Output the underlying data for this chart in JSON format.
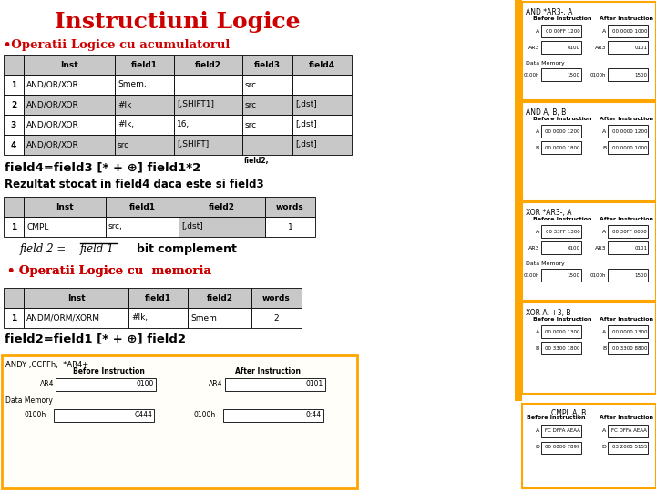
{
  "title": "Instructiuni Logice",
  "title_color": "#CC0000",
  "bg_color": "#FFFFFF",
  "subtitle1": "•Operatii Logice cu acumulatorul",
  "subtitle1_color": "#CC0000",
  "table1_headers": [
    "",
    "Inst",
    "field1",
    "field2",
    "field3",
    "field4"
  ],
  "table1_rows": [
    [
      "1",
      "AND/OR/XOR",
      "Smem,",
      "",
      "src",
      ""
    ],
    [
      "2",
      "AND/OR/XOR",
      "#lk",
      "[,SHIFT1]",
      "src",
      "[,dst]"
    ],
    [
      "3",
      "AND/OR/XOR",
      "#lk,",
      "16,",
      "src",
      "[,dst]"
    ],
    [
      "4",
      "AND/OR/XOR",
      "src",
      "[,SHIFT]",
      "",
      "[,dst]"
    ]
  ],
  "table2_headers": [
    "",
    "Inst",
    "field1",
    "field2",
    "words"
  ],
  "table2_rows": [
    [
      "1",
      "CMPL",
      "src,",
      "[,dst]",
      "1"
    ]
  ],
  "table3_headers": [
    "",
    "Inst",
    "field1",
    "field2",
    "words"
  ],
  "table3_rows": [
    [
      "1",
      "ANDM/ORM/XORM",
      "#lk,",
      "Smem",
      "2"
    ]
  ],
  "orange": "#FFA500",
  "gray_header": "#C8C8C8",
  "gray_row": "#C8C8C8",
  "white": "#FFFFFF",
  "light_gray_row": "#E8E8E8",
  "example1_title": "ANDY ,CCFFh,  *AR4+",
  "example1_ar4_before": "0100",
  "example1_ar4_after": "0101",
  "example1_dmem_addr": "0100h",
  "example1_dmem_before": "C444",
  "example1_dmem_after": "0:44",
  "right_sections": [
    {
      "label": "AND *AR3-, A",
      "has_dmem": true,
      "rows_before": [
        [
          "A",
          "00 00FF 1200"
        ],
        [
          "AR3",
          "0100"
        ]
      ],
      "dmem_before": [
        "0100h",
        "1500"
      ],
      "rows_after": [
        [
          "A",
          "00 0000 1000"
        ],
        [
          "AR3",
          "0101"
        ]
      ],
      "dmem_after": [
        "0100h",
        "1500"
      ]
    },
    {
      "label": "AND A, B, B",
      "has_dmem": false,
      "rows_before": [
        [
          "A",
          "00 0000 1200"
        ],
        [
          "B",
          "00 0000 1800"
        ]
      ],
      "rows_after": [
        [
          "A",
          "00 0000 1200"
        ],
        [
          "B",
          "00 0000 1000"
        ]
      ]
    },
    {
      "label": "XOR *AR3-, A",
      "has_dmem": true,
      "rows_before": [
        [
          "A",
          "00 33FF 1300"
        ],
        [
          "AR3",
          "0100"
        ]
      ],
      "dmem_before": [
        "0100h",
        "1500"
      ],
      "rows_after": [
        [
          "A",
          "00 30FF 0000"
        ],
        [
          "AR3",
          "0101"
        ]
      ],
      "dmem_after": [
        "0100h",
        "1500"
      ]
    },
    {
      "label": "XOR A, +3, B",
      "has_dmem": false,
      "rows_before": [
        [
          "A",
          "00 0000 1300"
        ],
        [
          "B",
          "00 3300 1800"
        ]
      ],
      "rows_after": [
        [
          "A",
          "00 0000 1300"
        ],
        [
          "B",
          "00 3300 8800"
        ]
      ]
    }
  ],
  "cmpl_title": "CMPL A, B",
  "cmpl_before": [
    [
      "A",
      "FC DFFA AEAA"
    ],
    [
      "D",
      "00 0000 7899"
    ]
  ],
  "cmpl_after": [
    [
      "A",
      "FC DFFA AEAA"
    ],
    [
      "D",
      "03 2005 5155"
    ]
  ]
}
